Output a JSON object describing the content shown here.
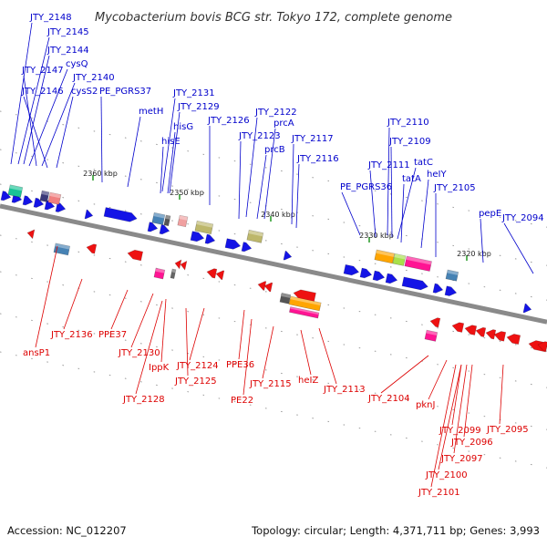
{
  "title": "Mycobacterium bovis BCG str. Tokyo 172, complete genome",
  "footer": {
    "accession": "Accession: NC_012207",
    "summary": "Topology: circular; Length: 4,371,711 bp; Genes: 3,993"
  },
  "colors": {
    "forward_label": "#0000cc",
    "reverse_label": "#dd0000",
    "forward_gene": "#1414e6",
    "reverse_gene": "#ee1111",
    "backbone": "#8a8a8a",
    "tick_mark": "#229922"
  },
  "ticks": [
    {
      "label": "2360 kbp"
    },
    {
      "label": "2350 kbp"
    },
    {
      "label": "2340 kbp"
    },
    {
      "label": "2330 kbp"
    },
    {
      "label": "2320 kbp"
    }
  ],
  "forward_labels": [
    "JTY_2148",
    "JTY_2145",
    "JTY_2144",
    "cysQ",
    "JTY_2147",
    "JTY_2140",
    "JTY_2146",
    "cysS2",
    "PE_PGRS37",
    "metH",
    "JTY_2131",
    "JTY_2129",
    "hisG",
    "JTY_2126",
    "hisE",
    "JTY_2122",
    "prcA",
    "JTY_2123",
    "prcB",
    "JTY_2117",
    "JTY_2116",
    "JTY_2110",
    "JTY_2109",
    "tatC",
    "JTY_2111",
    "heIY",
    "tatA",
    "PE_PGRS36",
    "JTY_2105",
    "pepE",
    "JTY_2094"
  ],
  "reverse_labels": [
    "ansP1",
    "JTY_2136",
    "PPE37",
    "JTY_2130",
    "IppK",
    "JTY_2128",
    "JTY_2125",
    "JTY_2124",
    "PPE36",
    "PE22",
    "JTY_2115",
    "heIZ",
    "JTY_2113",
    "JTY_2104",
    "pknJ",
    "JTY_2099",
    "JTY_2095",
    "JTY_2096",
    "JTY_2097",
    "JTY_2100",
    "JTY_2101"
  ]
}
